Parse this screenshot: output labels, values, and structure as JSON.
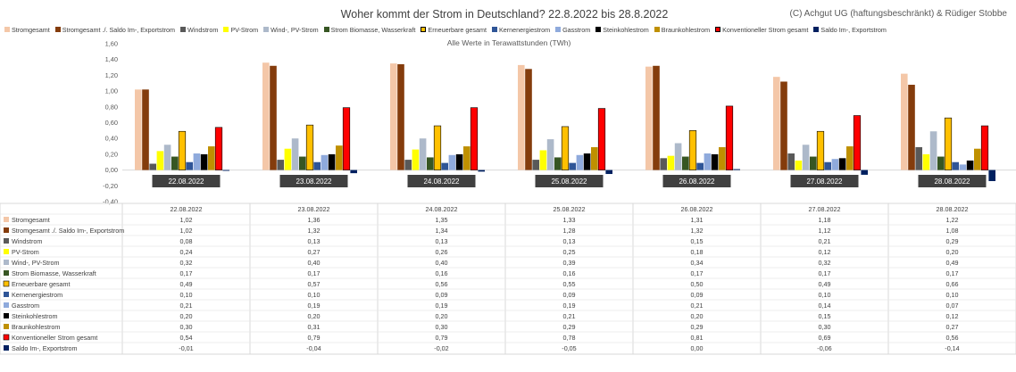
{
  "title": "Woher kommt der Strom in Deutschland? 22.8.2022 bis 28.8.2022",
  "credit": "(C) Achgut UG (haftungsbeschränkt) & Rüdiger Stobbe",
  "subtitle": "Alle Werte in Terawattstunden (TWh)",
  "chart_data": {
    "type": "bar",
    "title": "Woher kommt der Strom in Deutschland? 22.8.2022 bis 28.8.2022",
    "ylabel": "",
    "xlabel": "",
    "ylim": [
      -0.4,
      1.6
    ],
    "yticks": [
      "1,60",
      "1,40",
      "1,20",
      "1,00",
      "0,80",
      "0,60",
      "0,40",
      "0,20",
      "0,00",
      "-0,20",
      "-0,40"
    ],
    "grid": false,
    "legend_position": "top",
    "categories": [
      "22.08.2022",
      "23.08.2022",
      "24.08.2022",
      "25.08.2022",
      "26.08.2022",
      "27.08.2022",
      "28.08.2022"
    ],
    "series": [
      {
        "name": "Stromgesamt",
        "color": "#f4c7a8",
        "values": [
          1.02,
          1.36,
          1.35,
          1.33,
          1.31,
          1.18,
          1.22
        ],
        "labels": [
          "1,02",
          "1,36",
          "1,35",
          "1,33",
          "1,31",
          "1,18",
          "1,22"
        ]
      },
      {
        "name": "Stromgesamt ./. Saldo Im-, Exportstrom",
        "color": "#843c0c",
        "values": [
          1.02,
          1.32,
          1.34,
          1.28,
          1.32,
          1.12,
          1.08
        ],
        "labels": [
          "1,02",
          "1,32",
          "1,34",
          "1,28",
          "1,32",
          "1,12",
          "1,08"
        ]
      },
      {
        "name": "Windstrom",
        "color": "#595959",
        "values": [
          0.08,
          0.13,
          0.13,
          0.13,
          0.15,
          0.21,
          0.29
        ],
        "labels": [
          "0,08",
          "0,13",
          "0,13",
          "0,13",
          "0,15",
          "0,21",
          "0,29"
        ]
      },
      {
        "name": "PV-Strom",
        "color": "#ffff00",
        "values": [
          0.24,
          0.27,
          0.26,
          0.25,
          0.18,
          0.12,
          0.2
        ],
        "labels": [
          "0,24",
          "0,27",
          "0,26",
          "0,25",
          "0,18",
          "0,12",
          "0,20"
        ]
      },
      {
        "name": "Wind-, PV-Strom",
        "color": "#adb9ca",
        "values": [
          0.32,
          0.4,
          0.4,
          0.39,
          0.34,
          0.32,
          0.49
        ],
        "labels": [
          "0,32",
          "0,40",
          "0,40",
          "0,39",
          "0,34",
          "0,32",
          "0,49"
        ]
      },
      {
        "name": "Strom Biomasse, Wasserkraft",
        "color": "#375623",
        "values": [
          0.17,
          0.17,
          0.16,
          0.16,
          0.17,
          0.17,
          0.17
        ],
        "labels": [
          "0,17",
          "0,17",
          "0,16",
          "0,16",
          "0,17",
          "0,17",
          "0,17"
        ]
      },
      {
        "name": "Erneuerbare gesamt",
        "color": "#ffc000",
        "border": "#000000",
        "values": [
          0.49,
          0.57,
          0.56,
          0.55,
          0.5,
          0.49,
          0.66
        ],
        "labels": [
          "0,49",
          "0,57",
          "0,56",
          "0,55",
          "0,50",
          "0,49",
          "0,66"
        ]
      },
      {
        "name": "Kernenergiestrom",
        "color": "#2f5597",
        "values": [
          0.1,
          0.1,
          0.09,
          0.09,
          0.09,
          0.1,
          0.1
        ],
        "labels": [
          "0,10",
          "0,10",
          "0,09",
          "0,09",
          "0,09",
          "0,10",
          "0,10"
        ]
      },
      {
        "name": "Gasstrom",
        "color": "#8faadc",
        "values": [
          0.21,
          0.19,
          0.19,
          0.19,
          0.21,
          0.14,
          0.07
        ],
        "labels": [
          "0,21",
          "0,19",
          "0,19",
          "0,19",
          "0,21",
          "0,14",
          "0,07"
        ]
      },
      {
        "name": "Steinkohlestrom",
        "color": "#000000",
        "values": [
          0.2,
          0.2,
          0.2,
          0.21,
          0.2,
          0.15,
          0.12
        ],
        "labels": [
          "0,20",
          "0,20",
          "0,20",
          "0,21",
          "0,20",
          "0,15",
          "0,12"
        ]
      },
      {
        "name": "Braunkohlestrom",
        "color": "#bf9000",
        "values": [
          0.3,
          0.31,
          0.3,
          0.29,
          0.29,
          0.3,
          0.27
        ],
        "labels": [
          "0,30",
          "0,31",
          "0,30",
          "0,29",
          "0,29",
          "0,30",
          "0,27"
        ]
      },
      {
        "name": "Konventioneller Strom gesamt",
        "color": "#ff0000",
        "border": "#000000",
        "values": [
          0.54,
          0.79,
          0.79,
          0.78,
          0.81,
          0.69,
          0.56
        ],
        "labels": [
          "0,54",
          "0,79",
          "0,79",
          "0,78",
          "0,81",
          "0,69",
          "0,56"
        ]
      },
      {
        "name": "Saldo Im-, Exportstrom",
        "color": "#002060",
        "values": [
          -0.01,
          -0.04,
          -0.02,
          -0.05,
          0.0,
          -0.06,
          -0.14
        ],
        "labels": [
          "-0,01",
          "-0,04",
          "-0,02",
          "-0,05",
          "0,00",
          "-0,06",
          "-0,14"
        ]
      }
    ]
  }
}
